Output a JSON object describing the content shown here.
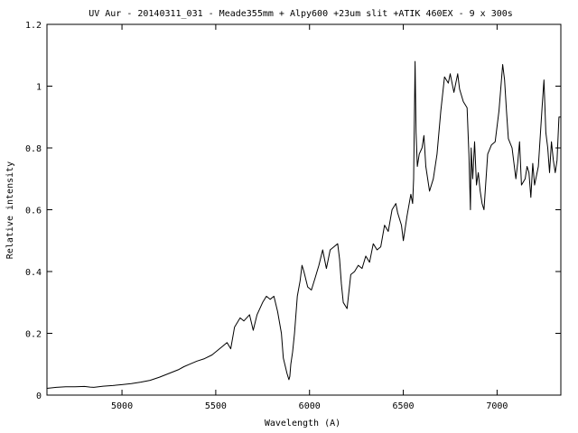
{
  "chart_data": {
    "type": "line",
    "title": "UV Aur - 20140311_031 - Meade355mm + Alpy600 +23um slit +ATIK 460EX - 9 x 300s",
    "xlabel": "Wavelength (A)",
    "ylabel": "Relative intensity",
    "xlim": [
      4600,
      7340
    ],
    "ylim": [
      0,
      1.2
    ],
    "xticks": [
      5000,
      5500,
      6000,
      6500,
      7000
    ],
    "xtick_labels": [
      "5000",
      "5500",
      "6000",
      "6500",
      "7000"
    ],
    "yticks": [
      0,
      0.2,
      0.4,
      0.6,
      0.8,
      1,
      1.2
    ],
    "ytick_labels": [
      "0",
      "0.2",
      "0.4",
      "0.6",
      "0.8",
      "1",
      "1.2"
    ],
    "grid": false,
    "legend": "none",
    "series": [
      {
        "x": [
          4600,
          4650,
          4700,
          4750,
          4800,
          4830,
          4850,
          4900,
          4950,
          5000,
          5050,
          5100,
          5150,
          5200,
          5250,
          5300,
          5330,
          5360,
          5400,
          5440,
          5480,
          5520,
          5560,
          5580,
          5600,
          5630,
          5650,
          5680,
          5700,
          5720,
          5750,
          5770,
          5790,
          5810,
          5830,
          5850,
          5860,
          5880,
          5890,
          5895,
          5900,
          5910,
          5920,
          5935,
          5950,
          5960,
          5970,
          5990,
          6010,
          6030,
          6050,
          6070,
          6090,
          6110,
          6130,
          6150,
          6160,
          6170,
          6180,
          6190,
          6200,
          6220,
          6240,
          6260,
          6280,
          6300,
          6320,
          6340,
          6360,
          6380,
          6400,
          6420,
          6440,
          6460,
          6470,
          6490,
          6500,
          6520,
          6540,
          6550,
          6555,
          6563,
          6568,
          6575,
          6585,
          6600,
          6610,
          6620,
          6640,
          6660,
          6680,
          6700,
          6720,
          6740,
          6750,
          6770,
          6790,
          6800,
          6820,
          6840,
          6850,
          6858,
          6862,
          6870,
          6880,
          6890,
          6900,
          6910,
          6920,
          6930,
          6950,
          6970,
          6990,
          7010,
          7030,
          7040,
          7050,
          7060,
          7080,
          7100,
          7110,
          7120,
          7130,
          7150,
          7160,
          7170,
          7180,
          7190,
          7200,
          7220,
          7240,
          7250,
          7260,
          7270,
          7280,
          7290,
          7300,
          7310,
          7320,
          7330,
          7340
        ],
        "y": [
          0.022,
          0.025,
          0.027,
          0.027,
          0.028,
          0.026,
          0.025,
          0.029,
          0.031,
          0.034,
          0.037,
          0.042,
          0.048,
          0.058,
          0.07,
          0.082,
          0.092,
          0.1,
          0.11,
          0.118,
          0.13,
          0.15,
          0.17,
          0.15,
          0.22,
          0.25,
          0.24,
          0.26,
          0.21,
          0.26,
          0.3,
          0.32,
          0.31,
          0.32,
          0.27,
          0.2,
          0.12,
          0.07,
          0.05,
          0.06,
          0.1,
          0.14,
          0.2,
          0.32,
          0.37,
          0.42,
          0.4,
          0.35,
          0.34,
          0.38,
          0.42,
          0.47,
          0.41,
          0.47,
          0.48,
          0.49,
          0.44,
          0.36,
          0.3,
          0.29,
          0.28,
          0.39,
          0.4,
          0.42,
          0.41,
          0.45,
          0.43,
          0.49,
          0.47,
          0.48,
          0.55,
          0.53,
          0.6,
          0.62,
          0.59,
          0.55,
          0.5,
          0.58,
          0.65,
          0.62,
          0.7,
          1.08,
          0.85,
          0.74,
          0.78,
          0.8,
          0.84,
          0.74,
          0.66,
          0.7,
          0.78,
          0.92,
          1.03,
          1.01,
          1.04,
          0.98,
          1.04,
          0.99,
          0.95,
          0.93,
          0.78,
          0.6,
          0.8,
          0.7,
          0.82,
          0.68,
          0.72,
          0.66,
          0.62,
          0.6,
          0.78,
          0.81,
          0.82,
          0.92,
          1.07,
          1.02,
          0.92,
          0.83,
          0.8,
          0.7,
          0.75,
          0.82,
          0.68,
          0.7,
          0.74,
          0.72,
          0.64,
          0.75,
          0.68,
          0.74,
          0.93,
          1.02,
          0.85,
          0.8,
          0.72,
          0.82,
          0.76,
          0.72,
          0.76,
          0.9,
          0.9
        ]
      }
    ]
  }
}
